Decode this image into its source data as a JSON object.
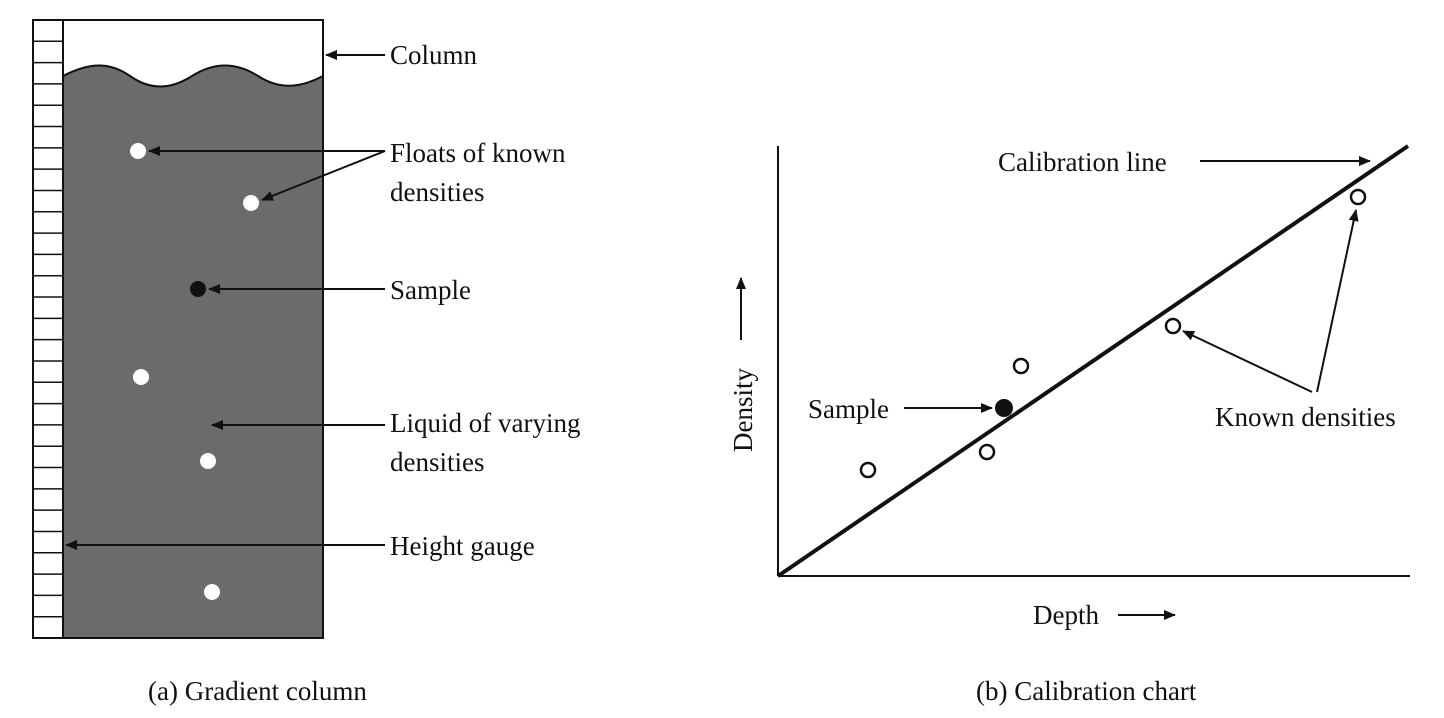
{
  "panel_a": {
    "caption": "(a) Gradient column",
    "labels": {
      "column": "Column",
      "floats_line1": "Floats of known",
      "floats_line2": "densities",
      "sample": "Sample",
      "liquid_line1": "Liquid of varying",
      "liquid_line2": "densities",
      "gauge": "Height gauge"
    },
    "colors": {
      "liquid": "#6b6b6b",
      "float": "#ffffff",
      "sample": "#111111"
    }
  },
  "panel_b": {
    "caption": "(b) Calibration chart",
    "labels": {
      "calibration_line": "Calibration line",
      "sample": "Sample",
      "known_densities": "Known densities",
      "x_axis": "Depth",
      "y_axis": "Density"
    }
  }
}
